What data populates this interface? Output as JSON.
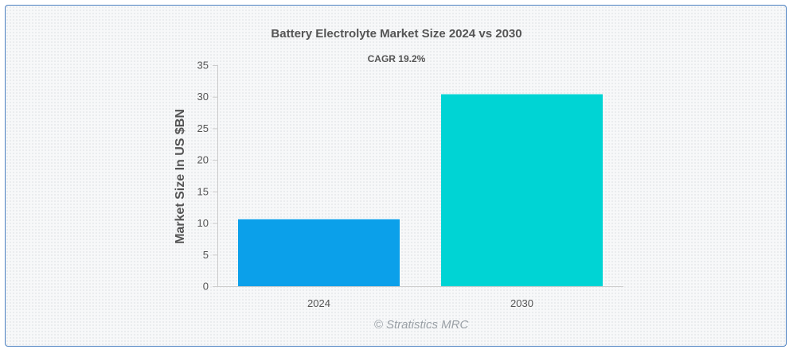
{
  "chart_data": {
    "type": "bar",
    "title": "Battery Electrolyte Market Size 2024 vs 2030",
    "subtitle": "CAGR 19.2%",
    "xlabel": "",
    "ylabel": "Market Size In US $BN",
    "categories": [
      "2024",
      "2030"
    ],
    "values": [
      10.6,
      30.4
    ],
    "colors": [
      "#0ba0ea",
      "#00d4d4"
    ],
    "ylim": [
      0,
      35
    ],
    "yticks": [
      0,
      5,
      10,
      15,
      20,
      25,
      30,
      35
    ],
    "grid": false,
    "legend": "none"
  },
  "watermark": "© Stratistics MRC"
}
